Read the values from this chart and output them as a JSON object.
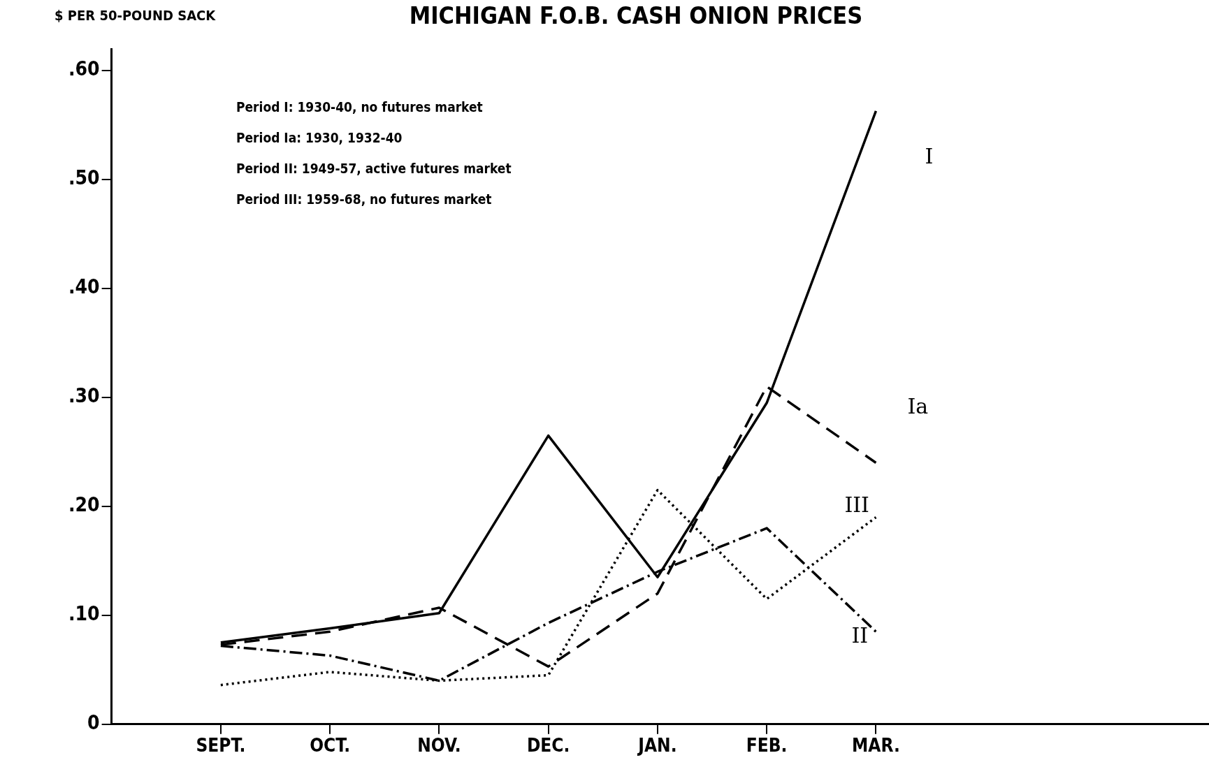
{
  "chart_data": {
    "type": "line",
    "title": "MICHIGAN F.O.B. CASH ONION PRICES",
    "ylabel": "$ PER 50-POUND SACK",
    "categories": [
      "SEPT.",
      "OCT.",
      "NOV.",
      "DEC.",
      "JAN.",
      "FEB.",
      "MAR."
    ],
    "series": [
      {
        "name": "I",
        "color": "#000000",
        "line_style": "solid",
        "values": [
          0.075,
          0.088,
          0.102,
          0.265,
          0.135,
          0.295,
          0.563
        ]
      },
      {
        "name": "Ia",
        "color": "#000000",
        "line_style": "dashed",
        "values": [
          0.073,
          0.085,
          0.107,
          0.053,
          0.12,
          0.31,
          0.24
        ]
      },
      {
        "name": "II",
        "color": "#000000",
        "line_style": "dashdot",
        "values": [
          0.072,
          0.063,
          0.04,
          0.093,
          0.14,
          0.18,
          0.085
        ]
      },
      {
        "name": "III",
        "color": "#000000",
        "line_style": "dotted",
        "values": [
          0.036,
          0.048,
          0.04,
          0.045,
          0.215,
          0.115,
          0.19
        ]
      }
    ],
    "ylim": [
      0,
      0.62
    ],
    "yticks": [
      0,
      {
        "value": 0.1,
        "label": ".10"
      },
      {
        "value": 0.2,
        "label": ".20"
      },
      {
        "value": 0.3,
        "label": ".30"
      },
      {
        "value": 0.4,
        "label": ".40"
      },
      {
        "value": 0.5,
        "label": ".50"
      },
      {
        "value": 0.6,
        "label": ".60"
      }
    ],
    "grid": false,
    "legend": false,
    "marker": "none",
    "annotations": [
      "Period I: 1930-40, no futures market",
      "Period Ia: 1930, 1932-40",
      "Period II: 1949-57, active futures market",
      "Period III: 1959-68, no futures market"
    ]
  }
}
